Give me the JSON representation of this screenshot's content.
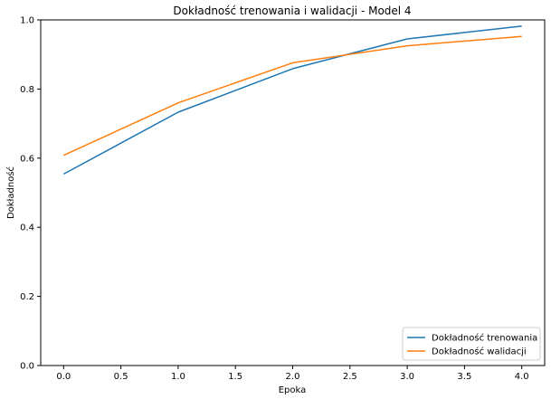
{
  "chart_data": {
    "type": "line",
    "title": "Dokładność trenowania i walidacji - Model 4",
    "xlabel": "Epoka",
    "ylabel": "Dokładność",
    "x": [
      0,
      1,
      2,
      3,
      4
    ],
    "xlim": [
      -0.2,
      4.2
    ],
    "ylim": [
      0,
      1
    ],
    "xticks": [
      0,
      0.5,
      1,
      1.5,
      2,
      2.5,
      3,
      3.5,
      4
    ],
    "xtick_labels": [
      "0.0",
      "0.5",
      "1.0",
      "1.5",
      "2.0",
      "2.5",
      "3.0",
      "3.5",
      "4.0"
    ],
    "yticks": [
      0,
      0.2,
      0.4,
      0.6,
      0.8,
      1
    ],
    "ytick_labels": [
      "0.0",
      "0.2",
      "0.4",
      "0.6",
      "0.8",
      "1.0"
    ],
    "grid": false,
    "legend_position": "lower-right",
    "series": [
      {
        "name": "Dokładność trenowania",
        "color": "#1f77b4",
        "values": [
          0.554,
          0.733,
          0.859,
          0.945,
          0.982
        ]
      },
      {
        "name": "Dokładność walidacji",
        "color": "#ff7f0e",
        "values": [
          0.608,
          0.76,
          0.876,
          0.925,
          0.952
        ]
      }
    ]
  }
}
